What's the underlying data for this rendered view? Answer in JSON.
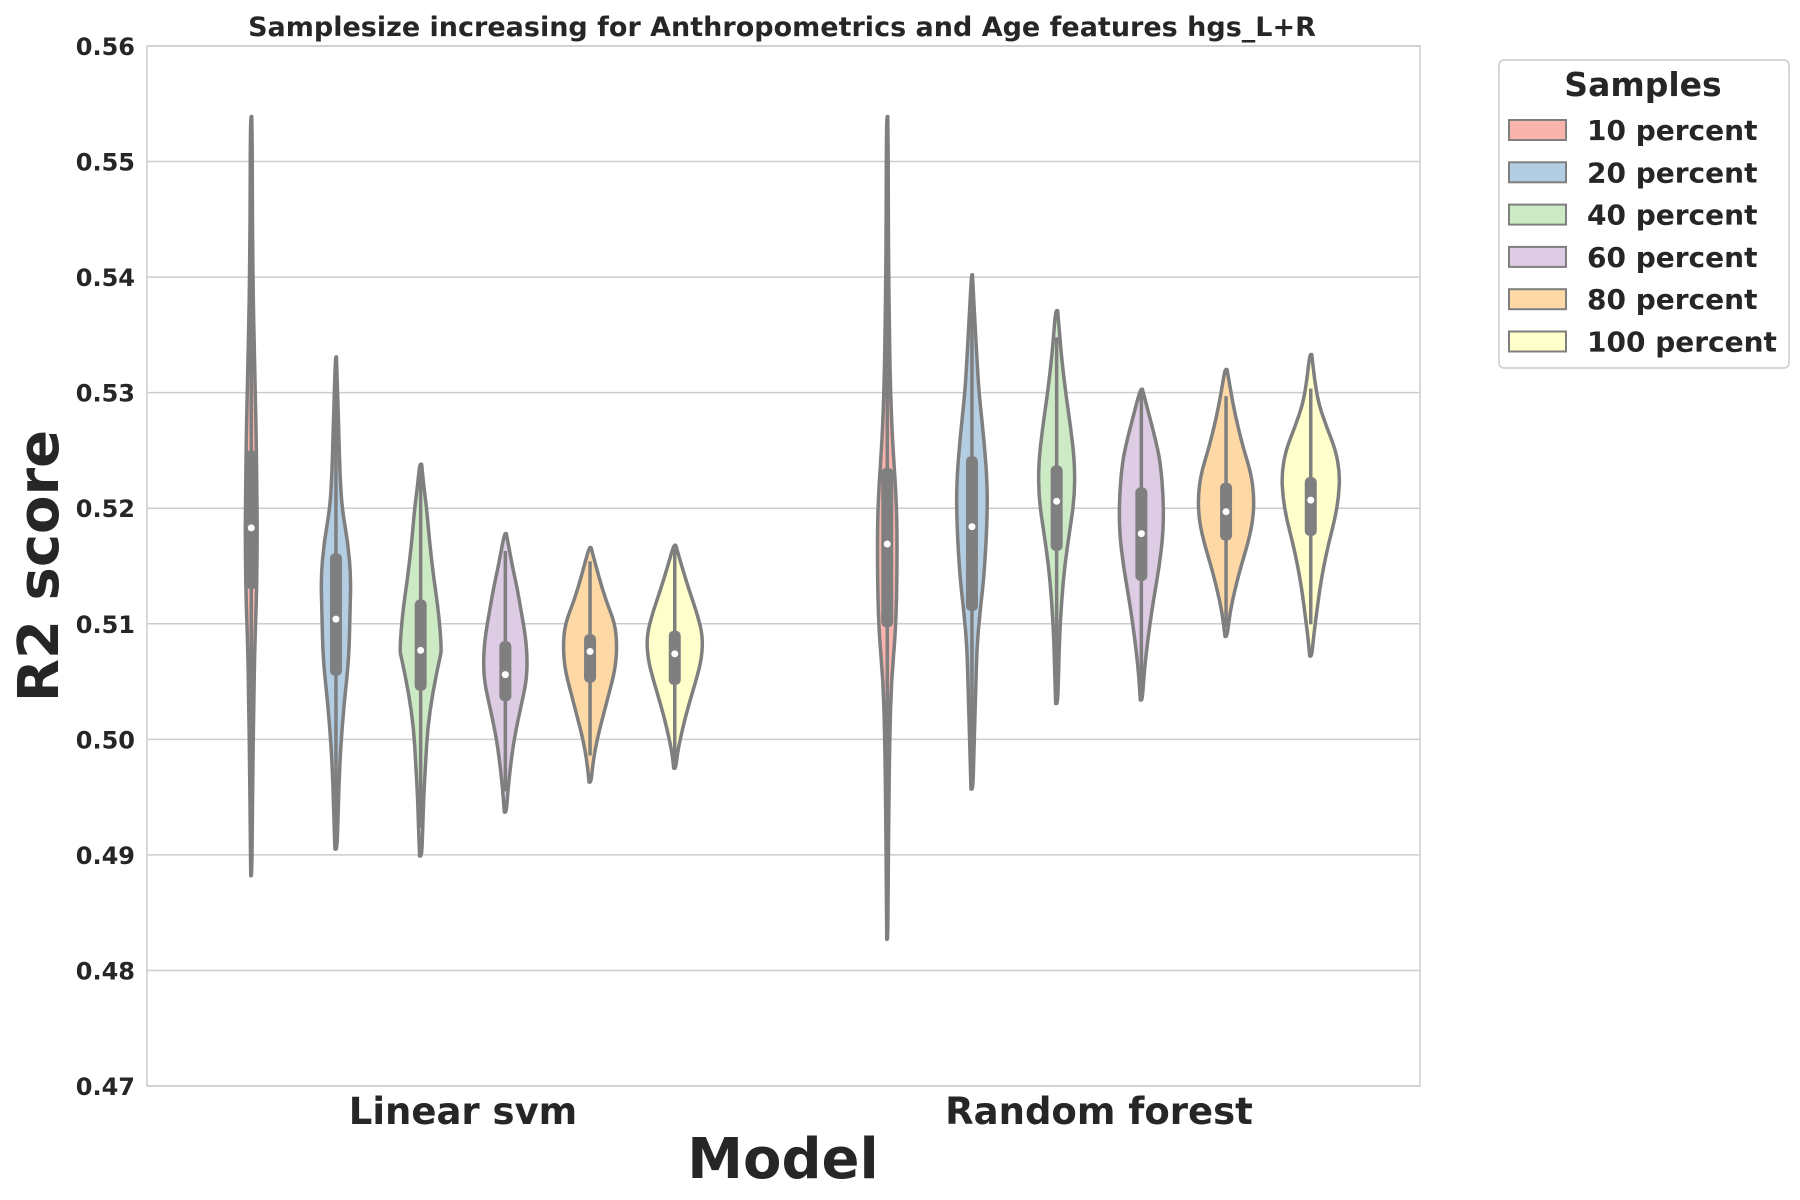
{
  "chart_data": {
    "type": "violin",
    "title": "Samplesize increasing for Anthropometrics and Age features hgs_L+R",
    "xlabel": "Model",
    "ylabel": "R2 score",
    "ylim": [
      0.47,
      0.56
    ],
    "yticks": [
      "0.47",
      "0.48",
      "0.49",
      "0.50",
      "0.51",
      "0.52",
      "0.53",
      "0.54",
      "0.55",
      "0.56"
    ],
    "grid": true,
    "legend_position": "outside-top-right",
    "legend_title": "Samples",
    "categories": [
      "Linear svm",
      "Random forest"
    ],
    "series": [
      {
        "name": "10 percent",
        "color": "#f9b4ae",
        "stats": [
          {
            "min": 0.4882,
            "q1": 0.513,
            "median": 0.5183,
            "q3": 0.525,
            "max": 0.5539,
            "profile": [
              [
                0.4882,
                0.5
              ],
              [
                0.492,
                1
              ],
              [
                0.497,
                1.5
              ],
              [
                0.503,
                2.5
              ],
              [
                0.508,
                3.5
              ],
              [
                0.513,
                5.5
              ],
              [
                0.5183,
                6
              ],
              [
                0.522,
                5.5
              ],
              [
                0.526,
                5
              ],
              [
                0.53,
                4
              ],
              [
                0.534,
                3
              ],
              [
                0.538,
                2
              ],
              [
                0.542,
                1.5
              ],
              [
                0.547,
                1
              ],
              [
                0.551,
                1
              ],
              [
                0.5539,
                0.5
              ]
            ]
          },
          {
            "min": 0.4827,
            "q1": 0.5097,
            "median": 0.5169,
            "q3": 0.5235,
            "max": 0.5539,
            "profile": [
              [
                0.4827,
                0.5
              ],
              [
                0.488,
                1
              ],
              [
                0.494,
                1.5
              ],
              [
                0.5,
                2.5
              ],
              [
                0.505,
                4
              ],
              [
                0.51,
                9
              ],
              [
                0.5169,
                10
              ],
              [
                0.521,
                9
              ],
              [
                0.526,
                5
              ],
              [
                0.531,
                3
              ],
              [
                0.536,
                2
              ],
              [
                0.54,
                1.5
              ],
              [
                0.545,
                1
              ],
              [
                0.55,
                1
              ],
              [
                0.5539,
                0.5
              ]
            ]
          }
        ]
      },
      {
        "name": "20 percent",
        "color": "#b3cde3",
        "stats": [
          {
            "min": 0.4905,
            "q1": 0.5055,
            "median": 0.5104,
            "q3": 0.5161,
            "max": 0.5331,
            "profile": [
              [
                0.4905,
                1
              ],
              [
                0.493,
                2
              ],
              [
                0.496,
                3
              ],
              [
                0.499,
                4.5
              ],
              [
                0.503,
                8
              ],
              [
                0.507,
                13
              ],
              [
                0.511,
                14
              ],
              [
                0.514,
                15
              ],
              [
                0.517,
                12
              ],
              [
                0.52,
                6
              ],
              [
                0.523,
                4
              ],
              [
                0.526,
                3
              ],
              [
                0.529,
                2
              ],
              [
                0.5331,
                0.5
              ]
            ]
          },
          {
            "min": 0.4957,
            "q1": 0.5111,
            "median": 0.5184,
            "q3": 0.5245,
            "max": 0.5402,
            "profile": [
              [
                0.4957,
                1
              ],
              [
                0.499,
                2
              ],
              [
                0.502,
                3
              ],
              [
                0.505,
                4
              ],
              [
                0.508,
                5
              ],
              [
                0.511,
                8
              ],
              [
                0.514,
                12
              ],
              [
                0.5184,
                15
              ],
              [
                0.522,
                15.5
              ],
              [
                0.526,
                12
              ],
              [
                0.53,
                7
              ],
              [
                0.533,
                5
              ],
              [
                0.536,
                3
              ],
              [
                0.5402,
                0.5
              ]
            ]
          }
        ]
      },
      {
        "name": "40 percent",
        "color": "#ccebc5",
        "stats": [
          {
            "min": 0.4899,
            "q1": 0.5042,
            "median": 0.5077,
            "q3": 0.5121,
            "max": 0.5238,
            "profile": [
              [
                0.4899,
                1
              ],
              [
                0.492,
                2
              ],
              [
                0.495,
                3
              ],
              [
                0.498,
                5
              ],
              [
                0.501,
                7
              ],
              [
                0.504,
                12
              ],
              [
                0.507,
                19
              ],
              [
                0.5077,
                21
              ],
              [
                0.511,
                18
              ],
              [
                0.514,
                13
              ],
              [
                0.517,
                9
              ],
              [
                0.52,
                6
              ],
              [
                0.522,
                3
              ],
              [
                0.5238,
                1
              ]
            ]
          },
          {
            "min": 0.5031,
            "q1": 0.5163,
            "median": 0.5206,
            "q3": 0.5237,
            "max": 0.5371,
            "profile": [
              [
                0.5031,
                1
              ],
              [
                0.506,
                2
              ],
              [
                0.509,
                3
              ],
              [
                0.512,
                5
              ],
              [
                0.515,
                8
              ],
              [
                0.518,
                13
              ],
              [
                0.521,
                18
              ],
              [
                0.524,
                18
              ],
              [
                0.527,
                14
              ],
              [
                0.53,
                9
              ],
              [
                0.533,
                5
              ],
              [
                0.535,
                3
              ],
              [
                0.5371,
                1
              ]
            ]
          }
        ]
      },
      {
        "name": "60 percent",
        "color": "#decbe4",
        "stats": [
          {
            "min": 0.4937,
            "q1": 0.5033,
            "median": 0.5056,
            "q3": 0.5085,
            "max": 0.5178,
            "profile": [
              [
                0.4937,
                1
              ],
              [
                0.496,
                3
              ],
              [
                0.499,
                7
              ],
              [
                0.501,
                11
              ],
              [
                0.503,
                16
              ],
              [
                0.505,
                21
              ],
              [
                0.507,
                22
              ],
              [
                0.509,
                20
              ],
              [
                0.511,
                16
              ],
              [
                0.513,
                12
              ],
              [
                0.515,
                7
              ],
              [
                0.5178,
                1
              ]
            ]
          },
          {
            "min": 0.5034,
            "q1": 0.5137,
            "median": 0.5178,
            "q3": 0.5218,
            "max": 0.5303,
            "profile": [
              [
                0.5034,
                1
              ],
              [
                0.506,
                3
              ],
              [
                0.509,
                7
              ],
              [
                0.512,
                12
              ],
              [
                0.515,
                18
              ],
              [
                0.518,
                22
              ],
              [
                0.521,
                22
              ],
              [
                0.524,
                19
              ],
              [
                0.526,
                14
              ],
              [
                0.528,
                8
              ],
              [
                0.5303,
                1
              ]
            ]
          }
        ]
      },
      {
        "name": "80 percent",
        "color": "#fed9a6",
        "stats": [
          {
            "min": 0.4963,
            "q1": 0.5049,
            "median": 0.5076,
            "q3": 0.5091,
            "max": 0.5166,
            "profile": [
              [
                0.4963,
                1
              ],
              [
                0.498,
                3
              ],
              [
                0.5,
                7
              ],
              [
                0.502,
                13
              ],
              [
                0.504,
                19
              ],
              [
                0.506,
                25
              ],
              [
                0.508,
                27
              ],
              [
                0.51,
                25
              ],
              [
                0.512,
                16
              ],
              [
                0.514,
                9
              ],
              [
                0.5166,
                1
              ]
            ]
          },
          {
            "min": 0.5089,
            "q1": 0.5172,
            "median": 0.5197,
            "q3": 0.5222,
            "max": 0.532,
            "profile": [
              [
                0.5089,
                1
              ],
              [
                0.511,
                4
              ],
              [
                0.513,
                9
              ],
              [
                0.515,
                15
              ],
              [
                0.517,
                22
              ],
              [
                0.519,
                27
              ],
              [
                0.521,
                28
              ],
              [
                0.523,
                25
              ],
              [
                0.525,
                18
              ],
              [
                0.527,
                12
              ],
              [
                0.529,
                7
              ],
              [
                0.531,
                3
              ],
              [
                0.532,
                1
              ]
            ]
          }
        ]
      },
      {
        "name": "100 percent",
        "color": "#ffffcc",
        "stats": [
          {
            "min": 0.4975,
            "q1": 0.5047,
            "median": 0.5074,
            "q3": 0.5094,
            "max": 0.5168,
            "profile": [
              [
                0.4975,
                1
              ],
              [
                0.499,
                3
              ],
              [
                0.501,
                8
              ],
              [
                0.503,
                14
              ],
              [
                0.505,
                21
              ],
              [
                0.507,
                27
              ],
              [
                0.509,
                28
              ],
              [
                0.511,
                22
              ],
              [
                0.513,
                14
              ],
              [
                0.515,
                7
              ],
              [
                0.5168,
                1
              ]
            ]
          },
          {
            "min": 0.5072,
            "q1": 0.5176,
            "median": 0.5207,
            "q3": 0.5227,
            "max": 0.5333,
            "profile": [
              [
                0.5072,
                1
              ],
              [
                0.509,
                3
              ],
              [
                0.511,
                6
              ],
              [
                0.513,
                9
              ],
              [
                0.515,
                13
              ],
              [
                0.517,
                18
              ],
              [
                0.519,
                24
              ],
              [
                0.521,
                28
              ],
              [
                0.523,
                29
              ],
              [
                0.525,
                25
              ],
              [
                0.527,
                16
              ],
              [
                0.529,
                8
              ],
              [
                0.531,
                4
              ],
              [
                0.5333,
                1
              ]
            ]
          }
        ]
      }
    ]
  }
}
